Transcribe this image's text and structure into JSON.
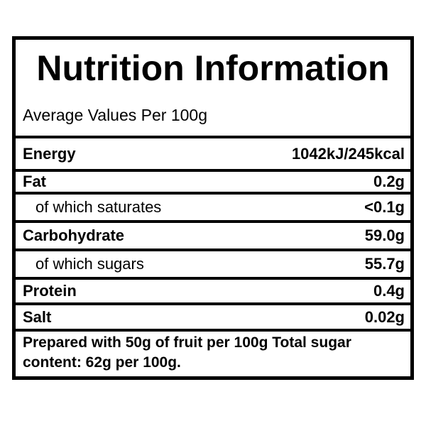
{
  "title": "Nutrition Information",
  "subtitle": "Average Values Per 100g",
  "rows": [
    {
      "label": "Energy",
      "value": "1042kJ/245kcal",
      "bold": true
    },
    {
      "label": "Fat",
      "value": "0.2g",
      "bold": true
    },
    {
      "label": "of which saturates",
      "value": "<0.1g",
      "bold": false
    },
    {
      "label": "Carbohydrate",
      "value": "59.0g",
      "bold": true
    },
    {
      "label": "of which sugars",
      "value": "55.7g",
      "bold": false
    },
    {
      "label": "Protein",
      "value": "0.4g",
      "bold": true
    },
    {
      "label": "Salt",
      "value": "0.02g",
      "bold": true
    }
  ],
  "footer": "Prepared with 50g of fruit per 100g Total sugar content: 62g per 100g."
}
